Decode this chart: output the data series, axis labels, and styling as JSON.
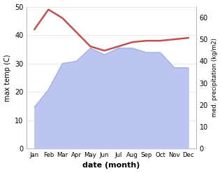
{
  "months": [
    "Jan",
    "Feb",
    "Mar",
    "Apr",
    "May",
    "Jun",
    "Jul",
    "Aug",
    "Sep",
    "Oct",
    "Nov",
    "Dec"
  ],
  "temp": [
    42,
    49,
    46,
    41,
    36,
    34.5,
    36,
    37.5,
    38,
    38,
    38.5,
    39
  ],
  "precip": [
    19,
    27,
    39,
    40,
    46,
    43,
    46,
    46,
    44,
    44,
    37,
    37
  ],
  "temp_color": "#c05050",
  "precip_fill_color": "#bcc5ef",
  "precip_line_color": "#9aa8e0",
  "ylabel_left": "max temp (C)",
  "ylabel_right": "med. precipitation (kg/m2)",
  "xlabel": "date (month)",
  "ylim_left": [
    0,
    50
  ],
  "ylim_right": [
    0,
    65
  ],
  "yticks_left": [
    0,
    10,
    20,
    30,
    40,
    50
  ],
  "yticks_right": [
    0,
    10,
    20,
    30,
    40,
    50,
    60
  ],
  "bg_color": "#ffffff",
  "grid_color": "#e0e0e0"
}
